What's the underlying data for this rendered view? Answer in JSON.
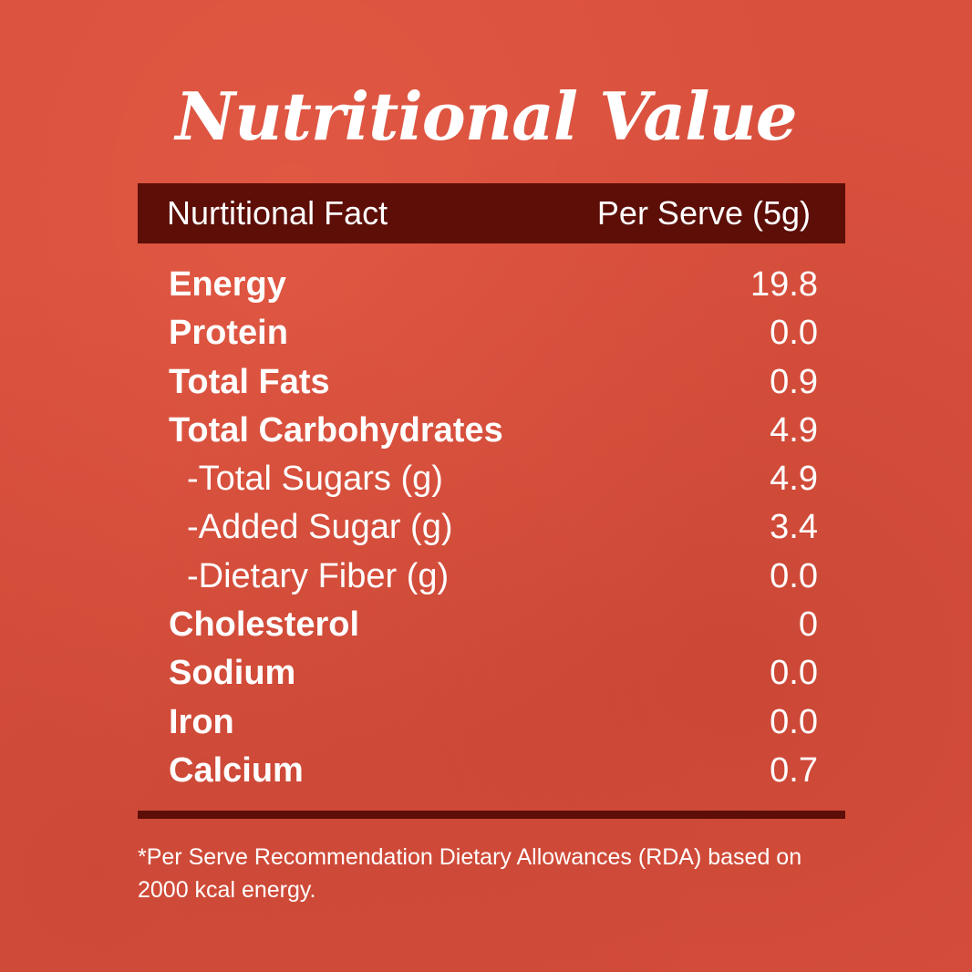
{
  "title": "Nutritional Value",
  "table": {
    "header": {
      "left": "Nurtitional Fact",
      "right": "Per Serve (5g)"
    },
    "rows": [
      {
        "label": "Energy",
        "value": "19.8"
      },
      {
        "label": "Protein",
        "value": "0.0"
      },
      {
        "label": "Total Fats",
        "value": "0.9"
      },
      {
        "label": "Total Carbohydrates",
        "value": "4.9"
      },
      {
        "label": "-Total Sugars (g)",
        "value": "4.9"
      },
      {
        "label": "-Added Sugar (g)",
        "value": "3.4"
      },
      {
        "label": "-Dietary Fiber (g)",
        "value": "0.0"
      },
      {
        "label": "Cholesterol",
        "value": "0"
      },
      {
        "label": "Sodium",
        "value": "0.0"
      },
      {
        "label": "Iron",
        "value": "0.0"
      },
      {
        "label": "Calcium",
        "value": "0.7"
      }
    ]
  },
  "footnote": "*Per Serve Recommendation Dietary Allowances (RDA) based on 2000 kcal energy.",
  "colors": {
    "background": "#d9503d",
    "header_bar": "#5c0e07",
    "text": "#ffffff"
  }
}
